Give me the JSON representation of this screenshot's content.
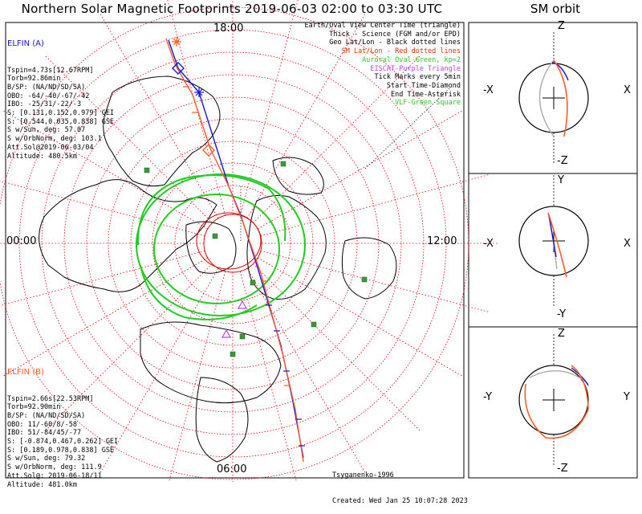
{
  "title": "Northern Solar Magnetic Footprints 2019-06-03 02:00 to 03:30 UTC",
  "orbit_title": "SM orbit",
  "hours": {
    "top": "18:00",
    "left": "00:00",
    "right": "12:00",
    "bottom": "06:00"
  },
  "elfin_a": {
    "name": "ELFIN (A)",
    "lines": [
      "Tspin=4.73s[12.67RPM]",
      "Torb=92.86min",
      "B/SP: (NA/ND/SD/SA)",
      "OBO: -64/-40/-67/-42",
      "IBO: -25/31/-22/-3",
      "S: [0.131,0.152,0.979] GEI",
      "S: [0.544,0.035,0.838] GSE",
      "S w/Sun, deg: 57.07",
      "S w/OrbNorm, deg: 103.1",
      "Att.Sol@2019-06-03/04",
      "Altitude: 480.5km"
    ]
  },
  "elfin_b": {
    "name": "ELFIN (B)",
    "lines": [
      "Tspin=2.66s[22.53RPM]",
      "Torb=92.90min",
      "B/SP: (NA/ND/SD/SA)",
      "OBO: 11/-60/8/-58",
      "IBO: 51/-84/45/-77",
      "S: [-0.874,0.467,0.262] GEI",
      "S: [0.189,0.978,0.838] GSE",
      "S w/Sun, deg: 79.32",
      "S w/OrbNorm, deg: 111.9",
      "Att.Sol@: 2019-06-18/11",
      "Altitude: 481.0km"
    ]
  },
  "legend": [
    {
      "text": "Earth/Oval View Center Time (triangle)",
      "color": "#000000"
    },
    {
      "text": "Thick - Science (FGM and/or EPD)",
      "color": "#000000"
    },
    {
      "text": "Geo Lat/Lon - Black dotted lines",
      "color": "#000000"
    },
    {
      "text": "SM Lat/Lon - Red dotted lines",
      "color": "#ff2a00"
    },
    {
      "text": "Auroral Oval-Green, kp=2",
      "color": "#22cc22"
    },
    {
      "text": "EISCAT-Purple Triangle",
      "color": "#c040ff"
    },
    {
      "text": "Tick Marks every 5min",
      "color": "#000000"
    },
    {
      "text": "Start Time-Diamond",
      "color": "#000000"
    },
    {
      "text": "End Time-Asterisk",
      "color": "#000000"
    },
    {
      "text": "VLF-Green Square",
      "color": "#22cc22"
    }
  ],
  "credit": {
    "model": "Tsyganenko-1996",
    "created": "Created: Wed Jan 25 10:07:28 2023"
  },
  "orbit_axes": {
    "xz": {
      "top": "Z",
      "bottom": "-Z",
      "left": "-X",
      "right": "X"
    },
    "xy": {
      "top": "Y",
      "bottom": "-Y",
      "left": "-X",
      "right": "X"
    },
    "yz": {
      "top": "Z",
      "bottom": "-Z",
      "left": "-Y",
      "right": "Y"
    }
  },
  "colors": {
    "elfin_a": "#1515d8",
    "elfin_b": "#ff5a2a",
    "sm_grid": "#e00000",
    "oval": "#22cc22",
    "vlf": "#3a9a3a",
    "eiscat": "#c040ff"
  },
  "chart_data": {
    "type": "polar-map",
    "center": "north magnetic pole",
    "time_range": "2019-06-03 02:00 to 03:30 UTC",
    "sm_latitude_circles_deg": [
      80,
      70,
      60,
      50,
      40,
      30,
      20,
      10,
      0
    ],
    "series": [
      {
        "name": "ELFIN (A)",
        "color": "blue"
      },
      {
        "name": "ELFIN (B)",
        "color": "red"
      }
    ],
    "auroral_oval": {
      "kp": 2,
      "color": "green"
    },
    "tick_interval_min": 5,
    "mlt_labels": [
      "18:00",
      "00:00",
      "12:00",
      "06:00"
    ]
  }
}
